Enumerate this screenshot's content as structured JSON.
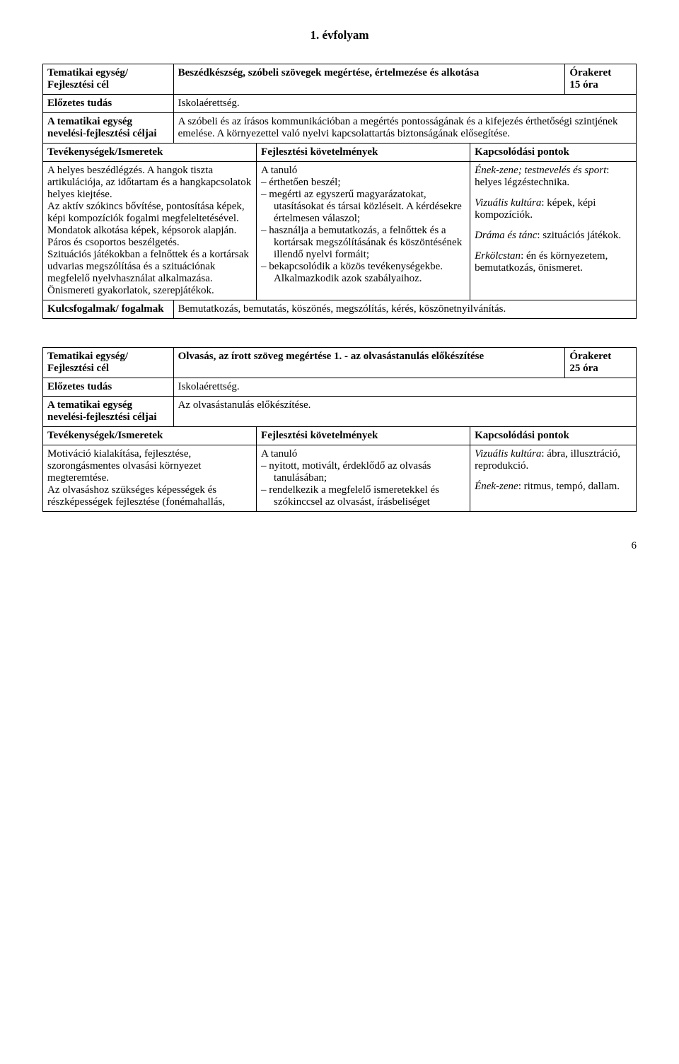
{
  "page": {
    "title": "1. évfolyam",
    "number": "6"
  },
  "labels": {
    "tematikai": "Tematikai egység/\nFejlesztési cél",
    "orakeret": "Órakeret",
    "elozetes": "Előzetes tudás",
    "celjai": "A tematikai egység nevelési-fejlesztési céljai",
    "tevekenysegek": "Tevékenységek/Ismeretek",
    "fejlesztesi": "Fejlesztési követelmények",
    "kapcsolodasi": "Kapcsolódási pontok",
    "kulcsfogalmak": "Kulcsfogalmak/ fogalmak"
  },
  "unit1": {
    "topic": "Beszédkészség, szóbeli szövegek megértése, értelmezése és alkotása",
    "hours": "15 óra",
    "prior": "Iskolaérettség.",
    "goals": "A szóbeli és az írásos kommunikációban a megértés pontosságának és a kifejezés érthetőségi szintjének emelése. A környezettel való nyelvi kapcsolattartás biztonságának elősegítése.",
    "activities": "A helyes beszédlégzés. A hangok tiszta artikulációja, az időtartam és a hangkapcsolatok helyes kiejtése.\nAz aktív szókincs bővítése, pontosítása képek, képi kompozíciók fogalmi megfeleltetésével.\nMondatok alkotása képek, képsorok alapján.\nPáros és csoportos beszélgetés.\nSzituációs játékokban a felnőttek és a kortársak udvarias megszólítása és a szituációnak megfelelő nyelvhasználat alkalmazása.\nÖnismereti gyakorlatok, szerepjátékok.",
    "requirements_intro": "A tanuló",
    "requirements": [
      "érthetően beszél;",
      "megérti az egyszerű magyarázatokat, utasításokat és társai közléseit. A kérdésekre értelmesen válaszol;",
      "használja a bemutatkozás, a felnőttek és a kortársak megszólításának és köszöntésének illendő nyelvi formáit;",
      "bekapcsolódik a közös tevékenységekbe. Alkalmazkodik azok szabályaihoz."
    ],
    "links": [
      {
        "em": "Ének-zene; testnevelés és sport",
        "rest": ": helyes légzéstechnika."
      },
      {
        "em": "Vizuális kultúra",
        "rest": ": képek, képi kompozíciók."
      },
      {
        "em": "Dráma és tánc",
        "rest": ": szituációs játékok."
      },
      {
        "em": "Erkölcstan",
        "rest": ": én és környezetem, bemutatkozás, önismeret."
      }
    ],
    "keywords": "Bemutatkozás, bemutatás, köszönés, megszólítás, kérés, köszönetnyilvánítás."
  },
  "unit2": {
    "topic": "Olvasás, az írott szöveg megértése 1. - az olvasástanulás előkészítése",
    "hours": "25 óra",
    "prior": "Iskolaérettség.",
    "goals": "Az olvasástanulás előkészítése.",
    "activities": "Motiváció kialakítása, fejlesztése, szorongásmentes olvasási környezet megteremtése.\nAz olvasáshoz szükséges képességek és részképességek fejlesztése (fonémahallás,",
    "requirements_intro": "A tanuló",
    "requirements": [
      "nyitott, motivált, érdeklődő az olvasás tanulásában;",
      "rendelkezik a megfelelő ismeretekkel és szókinccsel az olvasást, írásbeliséget"
    ],
    "links": [
      {
        "em": "Vizuális kultúra",
        "rest": ": ábra, illusztráció, reprodukció."
      },
      {
        "em": "Ének-zene",
        "rest": ": ritmus, tempó, dallam."
      }
    ]
  }
}
